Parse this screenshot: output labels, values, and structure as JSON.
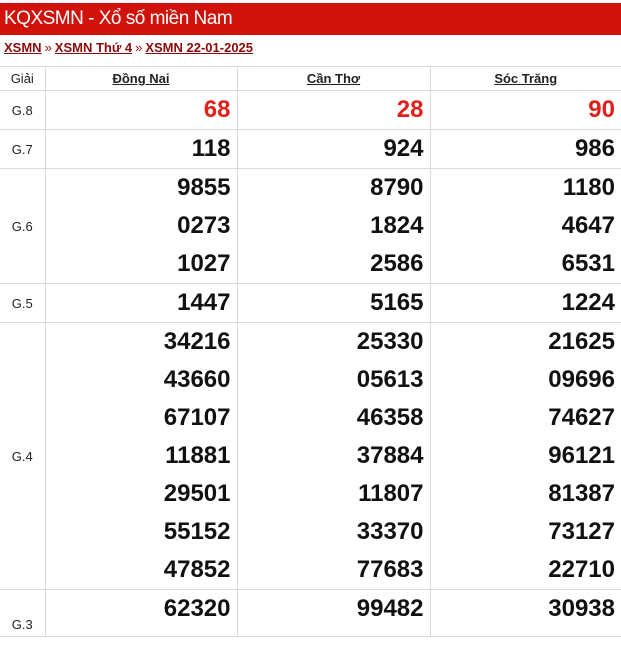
{
  "title": "KQXSMN - Xổ số miền Nam",
  "breadcrumb": [
    "XSMN",
    "XSMN Thứ 4",
    "XSMN 22-01-2025"
  ],
  "breadcrumb_sep": "»",
  "table": {
    "prize_header": "Giải",
    "provinces": [
      "Đồng Nai",
      "Cần Thơ",
      "Sóc Trăng"
    ],
    "rows": [
      {
        "prize": "G.8",
        "values": [
          [
            "68"
          ],
          [
            "28"
          ],
          [
            "90"
          ]
        ],
        "highlight": true
      },
      {
        "prize": "G.7",
        "values": [
          [
            "118"
          ],
          [
            "924"
          ],
          [
            "986"
          ]
        ]
      },
      {
        "prize": "G.6",
        "values": [
          [
            "9855",
            "0273",
            "1027"
          ],
          [
            "8790",
            "1824",
            "2586"
          ],
          [
            "1180",
            "4647",
            "6531"
          ]
        ]
      },
      {
        "prize": "G.5",
        "values": [
          [
            "1447"
          ],
          [
            "5165"
          ],
          [
            "1224"
          ]
        ]
      },
      {
        "prize": "G.4",
        "values": [
          [
            "34216",
            "43660",
            "67107",
            "11881",
            "29501",
            "55152",
            "47852"
          ],
          [
            "25330",
            "05613",
            "46358",
            "37884",
            "11807",
            "33370",
            "77683"
          ],
          [
            "21625",
            "09696",
            "74627",
            "96121",
            "81387",
            "73127",
            "22710"
          ]
        ]
      },
      {
        "prize": "G.3",
        "values": [
          [
            "62320"
          ],
          [
            "99482"
          ],
          [
            "30938"
          ]
        ]
      }
    ]
  },
  "colors": {
    "header_bg": "#d0120a",
    "highlight": "#e0201a",
    "link": "#8b0a0a"
  }
}
